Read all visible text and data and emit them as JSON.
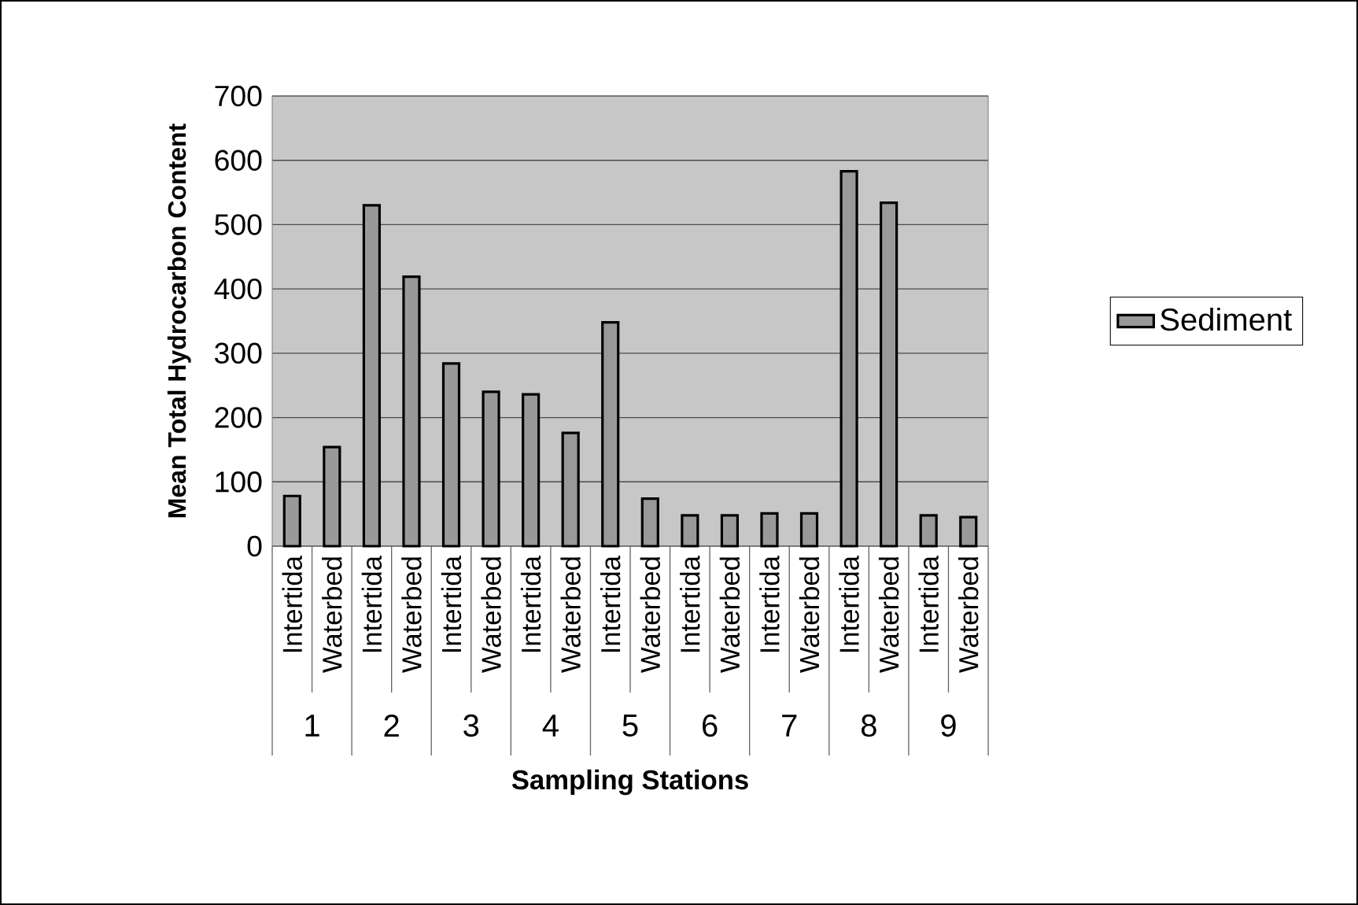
{
  "chart_data": {
    "type": "bar",
    "xlabel": "Sampling Stations",
    "ylabel": "Mean Total Hydrocarbon Content",
    "categories": [
      "Intertida",
      "Waterbed",
      "Intertida",
      "Waterbed",
      "Intertida",
      "Waterbed",
      "Intertida",
      "Waterbed",
      "Intertida",
      "Waterbed",
      "Intertida",
      "Waterbed",
      "Intertida",
      "Waterbed",
      "Intertida",
      "Waterbed",
      "Intertida",
      "Waterbed"
    ],
    "series": [
      {
        "name": "Sediment",
        "color": "#999999",
        "values": [
          78,
          154,
          530,
          419,
          284,
          240,
          236,
          176,
          348,
          74,
          48,
          48,
          51,
          51,
          583,
          534,
          48,
          45
        ]
      }
    ],
    "annotations": [
      "1",
      "2",
      "3",
      "4",
      "5",
      "6",
      "7",
      "8",
      "9"
    ],
    "ylim": [
      0,
      700
    ],
    "yticks": [
      0,
      100,
      200,
      300,
      400,
      500,
      600,
      700
    ],
    "grid": "y",
    "legend": "right"
  }
}
